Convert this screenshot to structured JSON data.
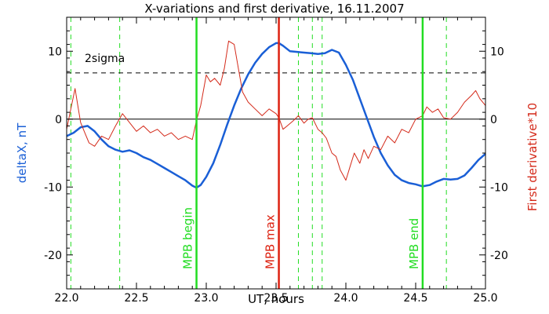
{
  "chart_data": {
    "type": "line",
    "title": "X-variations and first derivative, 16.11.2007",
    "xlabel": "UT, hours",
    "ylabel_left": "deltaX, nT",
    "ylabel_right": "First derivative*10",
    "xlim": [
      22.0,
      25.0
    ],
    "ylim": [
      -25,
      15
    ],
    "x_ticks": [
      "22.0",
      "22.5",
      "23.0",
      "23.5",
      "24.0",
      "24.5",
      "25.0"
    ],
    "x_tick_values": [
      22.0,
      22.5,
      23.0,
      23.5,
      24.0,
      24.5,
      25.0
    ],
    "y_ticks": [
      "10",
      "0",
      "-10",
      "-20"
    ],
    "y_tick_values": [
      10,
      0,
      -10,
      -20
    ],
    "colors": {
      "deltaX": "#1a5fd6",
      "derivative": "#d42a1a",
      "boundary": "#22dd22",
      "max": "#dd2211"
    },
    "threshold": {
      "label": "2sigma",
      "value": 6.8
    },
    "zero_line": 0,
    "vertical_markers": [
      {
        "x": 22.93,
        "label": "MPB begin",
        "kind": "solid-green"
      },
      {
        "x": 23.52,
        "label": "MPB max",
        "kind": "solid-red"
      },
      {
        "x": 24.55,
        "label": "MPB end",
        "kind": "solid-green"
      }
    ],
    "dashed_markers": [
      22.03,
      22.38,
      22.93,
      23.66,
      23.76,
      23.83,
      24.55,
      24.72
    ],
    "series": [
      {
        "key": "deltaX",
        "x": [
          22.0,
          22.05,
          22.1,
          22.15,
          22.2,
          22.25,
          22.3,
          22.35,
          22.4,
          22.45,
          22.5,
          22.55,
          22.6,
          22.65,
          22.7,
          22.75,
          22.8,
          22.85,
          22.9,
          22.93,
          22.96,
          23.0,
          23.05,
          23.1,
          23.15,
          23.2,
          23.25,
          23.3,
          23.35,
          23.4,
          23.45,
          23.5,
          23.52,
          23.55,
          23.6,
          23.65,
          23.7,
          23.75,
          23.8,
          23.85,
          23.9,
          23.95,
          24.0,
          24.05,
          24.1,
          24.15,
          24.2,
          24.25,
          24.3,
          24.35,
          24.4,
          24.45,
          24.5,
          24.55,
          24.6,
          24.65,
          24.7,
          24.75,
          24.8,
          24.85,
          24.9,
          24.95,
          25.0
        ],
        "values": [
          -2.5,
          -2.0,
          -1.2,
          -1.0,
          -1.8,
          -3.0,
          -4.0,
          -4.5,
          -4.8,
          -4.6,
          -5.0,
          -5.6,
          -6.0,
          -6.6,
          -7.2,
          -7.8,
          -8.4,
          -9.0,
          -9.8,
          -10.1,
          -9.7,
          -8.5,
          -6.5,
          -3.8,
          -0.8,
          2.0,
          4.5,
          6.6,
          8.3,
          9.6,
          10.6,
          11.2,
          11.2,
          10.8,
          10.0,
          9.9,
          9.8,
          9.7,
          9.6,
          9.7,
          10.2,
          9.8,
          8.0,
          5.8,
          3.0,
          0.2,
          -2.6,
          -5.0,
          -6.8,
          -8.2,
          -9.0,
          -9.4,
          -9.6,
          -9.9,
          -9.7,
          -9.2,
          -8.8,
          -8.9,
          -8.8,
          -8.3,
          -7.2,
          -6.0,
          -5.1
        ]
      },
      {
        "key": "derivative",
        "x": [
          22.0,
          22.03,
          22.06,
          22.08,
          22.1,
          22.13,
          22.16,
          22.2,
          22.25,
          22.3,
          22.35,
          22.4,
          22.45,
          22.5,
          22.55,
          22.6,
          22.65,
          22.7,
          22.75,
          22.8,
          22.85,
          22.9,
          22.93,
          22.96,
          23.0,
          23.03,
          23.06,
          23.1,
          23.13,
          23.16,
          23.2,
          23.23,
          23.26,
          23.3,
          23.35,
          23.4,
          23.45,
          23.5,
          23.52,
          23.55,
          23.58,
          23.62,
          23.66,
          23.7,
          23.73,
          23.76,
          23.8,
          23.83,
          23.86,
          23.9,
          23.93,
          23.96,
          24.0,
          24.03,
          24.06,
          24.1,
          24.13,
          24.16,
          24.2,
          24.25,
          24.3,
          24.35,
          24.4,
          24.45,
          24.5,
          24.55,
          24.58,
          24.62,
          24.66,
          24.7,
          24.75,
          24.8,
          24.85,
          24.9,
          24.93,
          24.96,
          25.0
        ],
        "values": [
          -1.5,
          1.5,
          4.5,
          2.0,
          -0.5,
          -2.0,
          -3.5,
          -4.0,
          -2.5,
          -3.0,
          -1.0,
          0.8,
          -0.5,
          -1.8,
          -1.0,
          -2.0,
          -1.5,
          -2.5,
          -2.0,
          -3.0,
          -2.5,
          -3.0,
          -0.2,
          2.0,
          6.5,
          5.5,
          6.0,
          5.0,
          7.5,
          11.5,
          11.0,
          7.5,
          4.0,
          2.5,
          1.5,
          0.5,
          1.5,
          0.8,
          0.2,
          -1.5,
          -1.0,
          -0.3,
          0.5,
          -0.6,
          0.0,
          0.2,
          -1.5,
          -2.0,
          -2.8,
          -5.0,
          -5.5,
          -7.5,
          -9.0,
          -7.0,
          -5.0,
          -6.5,
          -4.5,
          -5.8,
          -4.0,
          -4.5,
          -2.5,
          -3.5,
          -1.5,
          -2.0,
          0.0,
          0.5,
          1.8,
          1.0,
          1.5,
          0.2,
          0.0,
          1.0,
          2.5,
          3.5,
          4.2,
          3.0,
          2.0
        ]
      }
    ]
  }
}
